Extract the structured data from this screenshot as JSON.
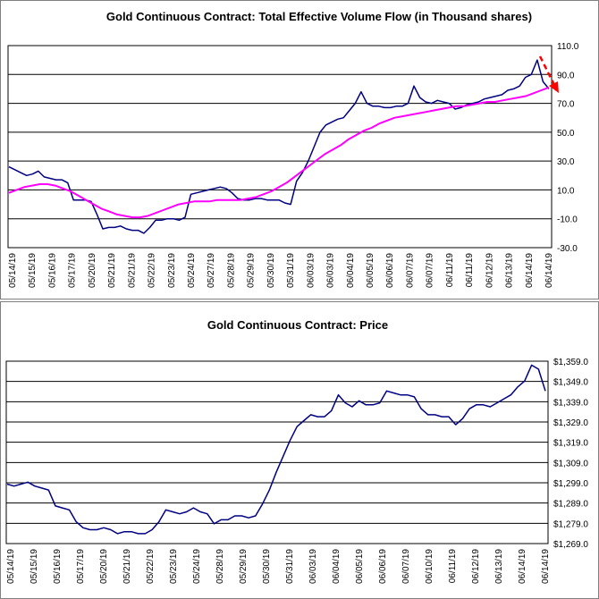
{
  "colors": {
    "series_main": "#000080",
    "series_ma": "#ff00ff",
    "arrow": "#ff0000",
    "grid": "#000000"
  },
  "chart_data": [
    {
      "type": "line",
      "title": "Gold Continuous Contract: Total Effective Volume Flow (in Thousand shares)",
      "yticks": [
        "110.0",
        "90.0",
        "70.0",
        "50.0",
        "30.0",
        "10.0",
        "-10.0",
        "-30.0"
      ],
      "ylim": [
        -30,
        110
      ],
      "xlabels": [
        "05/14/19",
        "05/15/19",
        "05/16/19",
        "05/17/19",
        "05/20/19",
        "05/21/19",
        "05/21/19",
        "05/22/19",
        "05/23/19",
        "05/24/19",
        "05/27/19",
        "05/28/19",
        "05/29/19",
        "05/30/19",
        "05/31/19",
        "06/03/19",
        "06/03/19",
        "06/04/19",
        "06/05/19",
        "06/06/19",
        "06/07/19",
        "06/07/19",
        "06/11/19",
        "06/11/19",
        "06/12/19",
        "06/13/19",
        "06/14/19",
        "06/14/19"
      ],
      "grid": true,
      "series": [
        {
          "values": [
            26,
            24,
            22,
            20,
            21,
            23,
            19,
            18,
            17,
            17,
            15,
            3,
            3,
            3,
            2,
            -7,
            -17,
            -16,
            -16,
            -15,
            -17,
            -18,
            -18,
            -20,
            -16,
            -11,
            -11,
            -10,
            -10,
            -11,
            -9,
            7,
            8,
            9,
            10,
            11,
            12,
            11,
            8,
            4,
            3,
            3,
            4,
            4,
            3,
            3,
            3,
            1,
            0,
            16,
            22,
            30,
            40,
            50,
            55,
            57,
            59,
            60,
            65,
            70,
            78,
            70,
            68,
            68,
            67,
            67,
            68,
            68,
            70,
            82,
            74,
            71,
            70,
            72,
            71,
            70,
            66,
            67,
            69,
            70,
            71,
            73,
            74,
            75,
            76,
            79,
            80,
            82,
            88,
            90,
            100,
            85,
            80
          ]
        },
        {
          "values": [
            8,
            10,
            12,
            13,
            14,
            14,
            13,
            11,
            9,
            6,
            3,
            0,
            -3,
            -5,
            -7,
            -8,
            -9,
            -9,
            -8,
            -6,
            -4,
            -2,
            0,
            1,
            2,
            2,
            2,
            3,
            3,
            3,
            3,
            4,
            5,
            7,
            9,
            12,
            15,
            19,
            23,
            27,
            31,
            35,
            38,
            41,
            45,
            48,
            51,
            53,
            56,
            58,
            60,
            61,
            62,
            63,
            64,
            65,
            66,
            67,
            68,
            68,
            69,
            70,
            71,
            71,
            72,
            73,
            74,
            75,
            77,
            79,
            81
          ]
        }
      ]
    },
    {
      "type": "line",
      "title": "Gold Continuous Contract: Price",
      "yticks": [
        "$1,359.0",
        "$1,349.0",
        "$1,339.0",
        "$1,329.0",
        "$1,319.0",
        "$1,309.0",
        "$1,299.0",
        "$1,289.0",
        "$1,279.0",
        "$1,269.0"
      ],
      "ylim": [
        1269,
        1361
      ],
      "xlabels": [
        "05/14/19",
        "05/15/19",
        "05/16/19",
        "05/17/19",
        "05/20/19",
        "05/21/19",
        "05/22/19",
        "05/23/19",
        "05/24/19",
        "05/28/19",
        "05/29/19",
        "05/30/19",
        "05/31/19",
        "06/03/19",
        "06/04/19",
        "06/05/19",
        "06/06/19",
        "06/07/19",
        "06/10/19",
        "06/11/19",
        "06/12/19",
        "06/13/19",
        "06/14/19",
        "06/14/19"
      ],
      "grid": true,
      "series": [
        {
          "values": [
            1299,
            1298,
            1299,
            1300,
            1298,
            1297,
            1296,
            1288,
            1287,
            1286,
            1280,
            1277,
            1276,
            1276,
            1277,
            1276,
            1274,
            1275,
            1275,
            1274,
            1274,
            1276,
            1280,
            1286,
            1285,
            1284,
            1285,
            1287,
            1285,
            1284,
            1279,
            1281,
            1281,
            1283,
            1283,
            1282,
            1283,
            1289,
            1296,
            1305,
            1313,
            1321,
            1328,
            1331,
            1334,
            1333,
            1333,
            1336,
            1344,
            1340,
            1338,
            1341,
            1339,
            1339,
            1340,
            1346,
            1345,
            1344,
            1344,
            1343,
            1337,
            1334,
            1334,
            1333,
            1333,
            1329,
            1332,
            1337,
            1339,
            1339,
            1338,
            1340,
            1342,
            1344,
            1348,
            1351,
            1359,
            1357,
            1346
          ]
        }
      ]
    }
  ]
}
